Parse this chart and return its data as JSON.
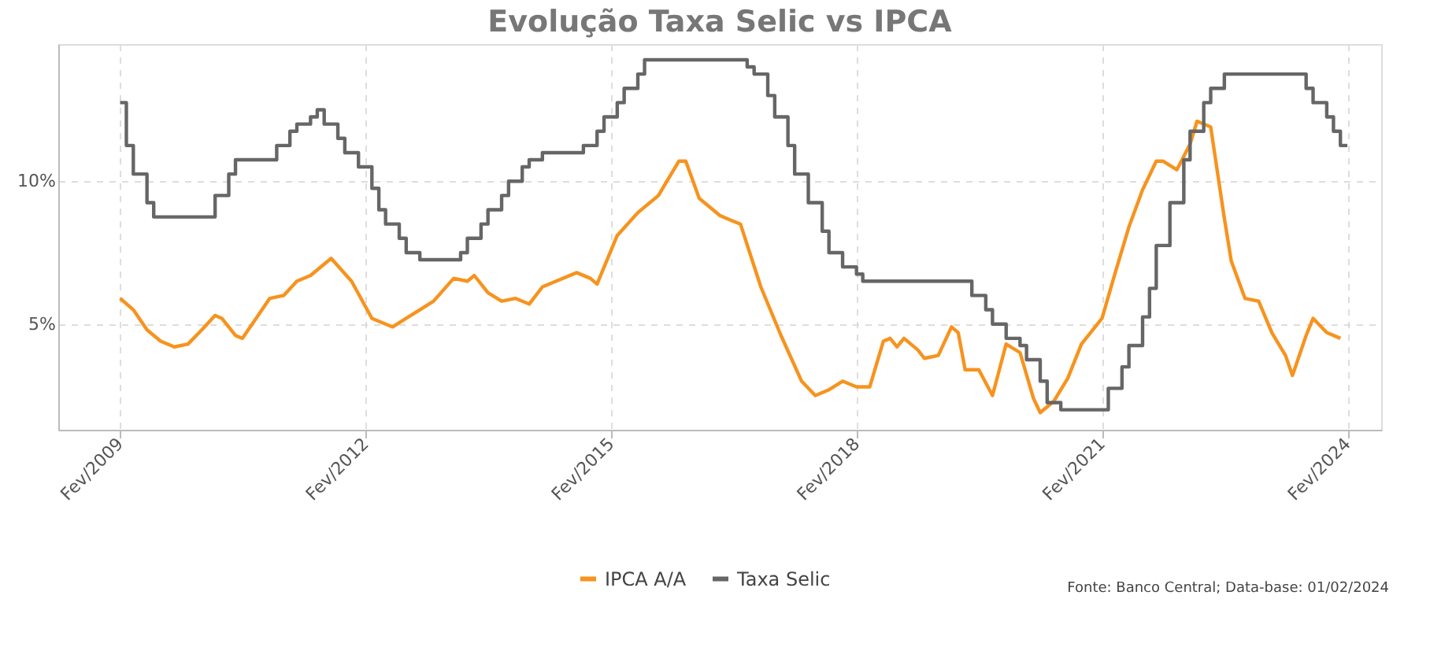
{
  "chart_data": {
    "type": "line",
    "title": "Evolução Taxa Selic vs IPCA",
    "xlim": [
      "2008-05",
      "2024-07"
    ],
    "xticks": [
      {
        "value": "2009-02",
        "label": "Fev/2009"
      },
      {
        "value": "2012-02",
        "label": "Fev/2012"
      },
      {
        "value": "2015-02",
        "label": "Fev/2015"
      },
      {
        "value": "2018-02",
        "label": "Fev/2018"
      },
      {
        "value": "2021-02",
        "label": "Fev/2021"
      },
      {
        "value": "2024-02",
        "label": "Fev/2024"
      }
    ],
    "ylim": [
      1.3,
      14.8
    ],
    "yticks": [
      {
        "value": 5,
        "label": "5%"
      },
      {
        "value": 10,
        "label": "10%"
      }
    ],
    "grid": true,
    "legend": "bottom",
    "annotations": [
      "Fonte: Banco Central; Data-base: 01/02/2024"
    ],
    "series": [
      {
        "name": "IPCA A/A",
        "color": "#f7931e",
        "type": "line",
        "x": [
          "2009-02",
          "2009-04",
          "2009-06",
          "2009-08",
          "2009-10",
          "2009-12",
          "2010-02",
          "2010-04",
          "2010-05",
          "2010-07",
          "2010-08",
          "2010-10",
          "2010-12",
          "2011-02",
          "2011-04",
          "2011-06",
          "2011-09",
          "2011-12",
          "2012-03",
          "2012-05",
          "2012-06",
          "2012-08",
          "2012-10",
          "2012-12",
          "2013-03",
          "2013-05",
          "2013-06",
          "2013-08",
          "2013-10",
          "2013-12",
          "2014-02",
          "2014-04",
          "2014-06",
          "2014-09",
          "2014-11",
          "2014-12",
          "2015-03",
          "2015-06",
          "2015-09",
          "2015-10",
          "2015-12",
          "2016-01",
          "2016-03",
          "2016-06",
          "2016-07",
          "2016-09",
          "2016-12",
          "2017-03",
          "2017-06",
          "2017-08",
          "2017-10",
          "2017-12",
          "2018-02",
          "2018-04",
          "2018-06",
          "2018-07",
          "2018-08",
          "2018-09",
          "2018-11",
          "2018-12",
          "2019-02",
          "2019-04",
          "2019-05",
          "2019-06",
          "2019-08",
          "2019-10",
          "2019-12",
          "2020-02",
          "2020-04",
          "2020-05",
          "2020-07",
          "2020-09",
          "2020-11",
          "2021-02",
          "2021-04",
          "2021-06",
          "2021-08",
          "2021-10",
          "2021-11",
          "2022-01",
          "2022-03",
          "2022-04",
          "2022-06",
          "2022-08",
          "2022-09",
          "2022-11",
          "2023-01",
          "2023-03",
          "2023-05",
          "2023-06",
          "2023-08",
          "2023-09",
          "2023-11",
          "2024-01"
        ],
        "values": [
          5.9,
          5.5,
          4.8,
          4.4,
          4.2,
          4.3,
          4.8,
          5.3,
          5.2,
          4.6,
          4.5,
          5.2,
          5.9,
          6.0,
          6.5,
          6.7,
          7.3,
          6.5,
          5.2,
          5.0,
          4.9,
          5.2,
          5.5,
          5.8,
          6.6,
          6.5,
          6.7,
          6.1,
          5.8,
          5.9,
          5.7,
          6.3,
          6.5,
          6.8,
          6.6,
          6.4,
          8.1,
          8.9,
          9.5,
          9.9,
          10.7,
          10.7,
          9.4,
          8.8,
          8.7,
          8.5,
          6.3,
          4.6,
          3.0,
          2.5,
          2.7,
          3.0,
          2.8,
          2.8,
          4.4,
          4.5,
          4.2,
          4.5,
          4.1,
          3.8,
          3.9,
          4.9,
          4.7,
          3.4,
          3.4,
          2.5,
          4.3,
          4.0,
          2.4,
          1.9,
          2.3,
          3.1,
          4.3,
          5.2,
          6.8,
          8.4,
          9.7,
          10.7,
          10.7,
          10.4,
          11.3,
          12.1,
          11.9,
          8.7,
          7.2,
          5.9,
          5.8,
          4.7,
          3.9,
          3.2,
          4.6,
          5.2,
          4.7,
          4.5
        ]
      },
      {
        "name": "Taxa Selic",
        "color": "#666666",
        "type": "step",
        "x": [
          "2009-02",
          "2009-03",
          "2009-04",
          "2009-06",
          "2009-07",
          "2010-04",
          "2010-06",
          "2010-07",
          "2011-01",
          "2011-03",
          "2011-04",
          "2011-06",
          "2011-07",
          "2011-08",
          "2011-10",
          "2011-11",
          "2012-01",
          "2012-03",
          "2012-04",
          "2012-05",
          "2012-07",
          "2012-08",
          "2012-10",
          "2013-04",
          "2013-05",
          "2013-07",
          "2013-08",
          "2013-10",
          "2013-11",
          "2014-01",
          "2014-02",
          "2014-04",
          "2014-10",
          "2014-12",
          "2015-01",
          "2015-03",
          "2015-04",
          "2015-06",
          "2015-07",
          "2016-10",
          "2016-11",
          "2017-01",
          "2017-02",
          "2017-04",
          "2017-05",
          "2017-07",
          "2017-09",
          "2017-10",
          "2017-12",
          "2018-02",
          "2018-03",
          "2019-07",
          "2019-09",
          "2019-10",
          "2019-12",
          "2020-02",
          "2020-03",
          "2020-05",
          "2020-06",
          "2020-08",
          "2021-03",
          "2021-05",
          "2021-06",
          "2021-08",
          "2021-09",
          "2021-10",
          "2021-12",
          "2022-02",
          "2022-03",
          "2022-05",
          "2022-06",
          "2022-08",
          "2023-08",
          "2023-09",
          "2023-11",
          "2023-12",
          "2024-01",
          "2024-02"
        ],
        "values": [
          12.75,
          11.25,
          10.25,
          9.25,
          8.75,
          9.5,
          10.25,
          10.75,
          11.25,
          11.75,
          12.0,
          12.25,
          12.5,
          12.0,
          11.5,
          11.0,
          10.5,
          9.75,
          9.0,
          8.5,
          8.0,
          7.5,
          7.25,
          7.5,
          8.0,
          8.5,
          9.0,
          9.5,
          10.0,
          10.5,
          10.75,
          11.0,
          11.25,
          11.75,
          12.25,
          12.75,
          13.25,
          13.75,
          14.25,
          14.0,
          13.75,
          13.0,
          12.25,
          11.25,
          10.25,
          9.25,
          8.25,
          7.5,
          7.0,
          6.75,
          6.5,
          6.0,
          5.5,
          5.0,
          4.5,
          4.25,
          3.75,
          3.0,
          2.25,
          2.0,
          2.75,
          3.5,
          4.25,
          5.25,
          6.25,
          7.75,
          9.25,
          10.75,
          11.75,
          12.75,
          13.25,
          13.75,
          13.25,
          12.75,
          12.25,
          11.75,
          11.25,
          11.25
        ]
      }
    ]
  }
}
